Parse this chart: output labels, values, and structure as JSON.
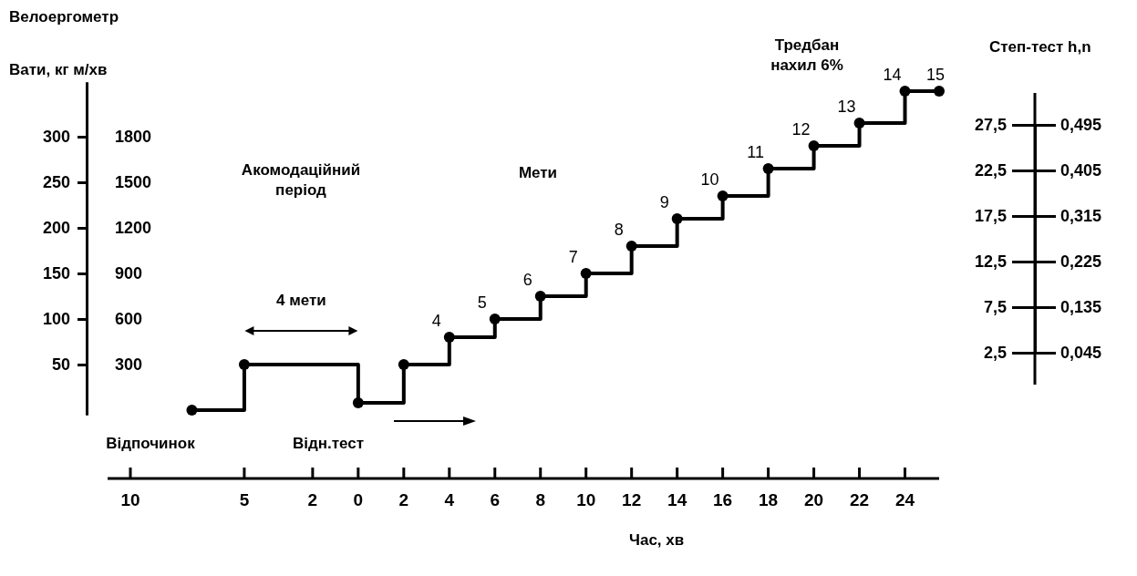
{
  "chart_data": {
    "type": "step",
    "title": "Велоергометр",
    "ylabel": "Вати, кг м/хв",
    "y3label": "Степ-тест h,n",
    "xlabel": "Час, хв",
    "x": [
      -7.3,
      -5,
      0,
      2,
      4,
      6,
      8,
      10,
      12,
      14,
      16,
      18,
      20,
      22,
      24,
      25.5
    ],
    "series": [
      {
        "color": "#000000",
        "values": [
          0,
          50,
          8,
          50,
          80,
          100,
          125,
          150,
          180,
          210,
          235,
          265,
          290,
          315,
          350,
          350
        ]
      }
    ],
    "xlim": [
      -11,
      25.5
    ],
    "xticks": [
      {
        "value": -10,
        "label": "10"
      },
      {
        "value": -5,
        "label": "5"
      },
      {
        "value": -2,
        "label": "2"
      },
      0,
      2,
      4,
      6,
      8,
      10,
      12,
      14,
      16,
      18,
      20,
      22,
      24
    ],
    "ylim": [
      -5,
      360
    ],
    "yticks": [
      50,
      100,
      150,
      200,
      250,
      300
    ],
    "y2lim": [
      -30,
      2160
    ],
    "y2ticks": [
      300,
      600,
      900,
      1200,
      1500,
      1800
    ],
    "y3lim": [
      2.5,
      27.5
    ],
    "y3ticks": [
      {
        "value": 2.5,
        "label": "2,5"
      },
      {
        "value": 7.5,
        "label": "7,5"
      },
      {
        "value": 12.5,
        "label": "12,5"
      },
      {
        "value": 17.5,
        "label": "17,5"
      },
      {
        "value": 22.5,
        "label": "22,5"
      },
      {
        "value": 27.5,
        "label": "27,5"
      }
    ],
    "marker": "circle",
    "line_style": "solid",
    "grid": false,
    "annotations": [
      "Акомодаційний період",
      "Мети",
      "Відпочинок",
      "Відн.тест",
      "Тредбан нахил 6%",
      "4 мети",
      "0,045",
      "0,135",
      "0,225",
      "0,315",
      "0,405",
      "0,495",
      {
        "text": "4",
        "x": 4,
        "y": 80
      },
      {
        "text": "5",
        "x": 6,
        "y": 100
      },
      {
        "text": "6",
        "x": 8,
        "y": 125
      },
      {
        "text": "7",
        "x": 10,
        "y": 150
      },
      {
        "text": "8",
        "x": 12,
        "y": 180
      },
      {
        "text": "9",
        "x": 14,
        "y": 210
      },
      {
        "text": "10",
        "x": 16,
        "y": 235
      },
      {
        "text": "11",
        "x": 18,
        "y": 265
      },
      {
        "text": "12",
        "x": 20,
        "y": 290
      },
      {
        "text": "13",
        "x": 22,
        "y": 315
      },
      {
        "text": "14",
        "x": 24,
        "y": 350
      },
      {
        "text": "15",
        "x": 25.5,
        "y": 350
      }
    ]
  }
}
